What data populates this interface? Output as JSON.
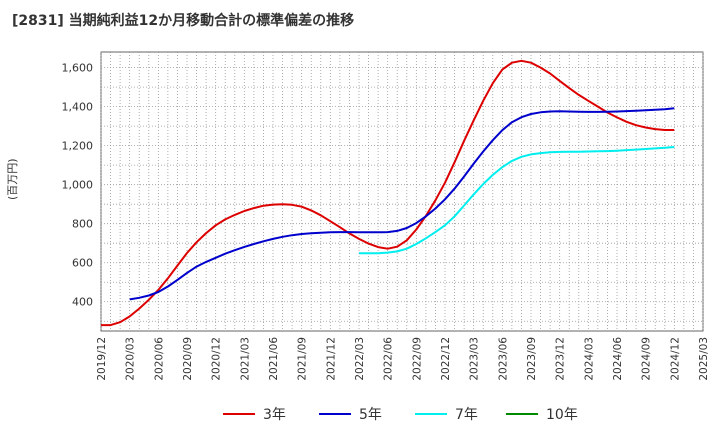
{
  "chart_data": {
    "type": "line",
    "title": "[2831]  当期純利益12か月移動合計の標準偏差の推移",
    "ylabel": "(百万円)",
    "xlabel": "",
    "ylim": [
      250,
      1680
    ],
    "y_ticks": [
      400,
      600,
      800,
      1000,
      1200,
      1400,
      1600
    ],
    "y_tick_labels": [
      "400",
      "600",
      "800",
      "1,000",
      "1,200",
      "1,400",
      "1,600"
    ],
    "x_ticks": [
      "2019/12",
      "2020/03",
      "2020/06",
      "2020/09",
      "2020/12",
      "2021/03",
      "2021/06",
      "2021/09",
      "2021/12",
      "2022/03",
      "2022/06",
      "2022/09",
      "2022/12",
      "2023/03",
      "2023/06",
      "2023/09",
      "2023/12",
      "2024/03",
      "2024/06",
      "2024/09",
      "2024/12",
      "2025/03"
    ],
    "grid": true,
    "legend_position": "bottom",
    "series": [
      {
        "name": "3年",
        "color": "#dd0000",
        "x": [
          "2019/12",
          "2020/01",
          "2020/02",
          "2020/03",
          "2020/04",
          "2020/05",
          "2020/06",
          "2020/07",
          "2020/08",
          "2020/09",
          "2020/10",
          "2020/11",
          "2020/12",
          "2021/01",
          "2021/02",
          "2021/03",
          "2021/04",
          "2021/05",
          "2021/06",
          "2021/07",
          "2021/08",
          "2021/09",
          "2021/10",
          "2021/11",
          "2021/12",
          "2022/01",
          "2022/02",
          "2022/03",
          "2022/04",
          "2022/05",
          "2022/06",
          "2022/07",
          "2022/08",
          "2022/09",
          "2022/10",
          "2022/11",
          "2022/12",
          "2023/01",
          "2023/02",
          "2023/03",
          "2023/04",
          "2023/05",
          "2023/06",
          "2023/07",
          "2023/08",
          "2023/09",
          "2023/10",
          "2023/11",
          "2023/12",
          "2024/01",
          "2024/02",
          "2024/03",
          "2024/04",
          "2024/05",
          "2024/06",
          "2024/07",
          "2024/08",
          "2024/09",
          "2024/10",
          "2024/11",
          "2024/12"
        ],
        "values": [
          280,
          280,
          295,
          325,
          365,
          410,
          460,
          520,
          585,
          650,
          705,
          752,
          792,
          822,
          845,
          865,
          880,
          892,
          898,
          900,
          897,
          887,
          868,
          843,
          813,
          782,
          750,
          722,
          698,
          680,
          672,
          682,
          715,
          770,
          840,
          920,
          1010,
          1115,
          1225,
          1330,
          1430,
          1520,
          1590,
          1625,
          1635,
          1625,
          1600,
          1570,
          1532,
          1495,
          1460,
          1430,
          1400,
          1370,
          1345,
          1322,
          1305,
          1293,
          1285,
          1280,
          1280
        ]
      },
      {
        "name": "5年",
        "color": "#0000cc",
        "x": [
          "2020/03",
          "2020/04",
          "2020/05",
          "2020/06",
          "2020/07",
          "2020/08",
          "2020/09",
          "2020/10",
          "2020/11",
          "2020/12",
          "2021/01",
          "2021/02",
          "2021/03",
          "2021/04",
          "2021/05",
          "2021/06",
          "2021/07",
          "2021/08",
          "2021/09",
          "2021/10",
          "2021/11",
          "2021/12",
          "2022/01",
          "2022/02",
          "2022/03",
          "2022/04",
          "2022/05",
          "2022/06",
          "2022/07",
          "2022/08",
          "2022/09",
          "2022/10",
          "2022/11",
          "2022/12",
          "2023/01",
          "2023/02",
          "2023/03",
          "2023/04",
          "2023/05",
          "2023/06",
          "2023/07",
          "2023/08",
          "2023/09",
          "2023/10",
          "2023/11",
          "2023/12",
          "2024/01",
          "2024/02",
          "2024/03",
          "2024/04",
          "2024/05",
          "2024/06",
          "2024/07",
          "2024/08",
          "2024/09",
          "2024/10",
          "2024/11",
          "2024/12"
        ],
        "values": [
          412,
          420,
          432,
          450,
          478,
          512,
          548,
          580,
          604,
          625,
          646,
          664,
          681,
          696,
          710,
          722,
          733,
          741,
          747,
          751,
          754,
          756,
          757,
          757,
          756,
          756,
          756,
          757,
          763,
          778,
          803,
          838,
          878,
          925,
          980,
          1042,
          1108,
          1170,
          1228,
          1279,
          1320,
          1346,
          1362,
          1371,
          1375,
          1376,
          1375,
          1374,
          1373,
          1373,
          1374,
          1375,
          1377,
          1379,
          1381,
          1384,
          1387,
          1392
        ]
      },
      {
        "name": "7年",
        "color": "#00eeee",
        "x": [
          "2022/03",
          "2022/04",
          "2022/05",
          "2022/06",
          "2022/07",
          "2022/08",
          "2022/09",
          "2022/10",
          "2022/11",
          "2022/12",
          "2023/01",
          "2023/02",
          "2023/03",
          "2023/04",
          "2023/05",
          "2023/06",
          "2023/07",
          "2023/08",
          "2023/09",
          "2023/10",
          "2023/11",
          "2023/12",
          "2024/01",
          "2024/02",
          "2024/03",
          "2024/04",
          "2024/05",
          "2024/06",
          "2024/07",
          "2024/08",
          "2024/09",
          "2024/10",
          "2024/11",
          "2024/12"
        ],
        "values": [
          648,
          648,
          649,
          652,
          658,
          672,
          696,
          725,
          757,
          792,
          838,
          893,
          950,
          1003,
          1050,
          1090,
          1122,
          1143,
          1155,
          1162,
          1166,
          1168,
          1169,
          1169,
          1170,
          1171,
          1172,
          1174,
          1177,
          1180,
          1183,
          1186,
          1189,
          1193
        ]
      },
      {
        "name": "10年",
        "color": "#008800",
        "x": [],
        "values": []
      }
    ]
  }
}
